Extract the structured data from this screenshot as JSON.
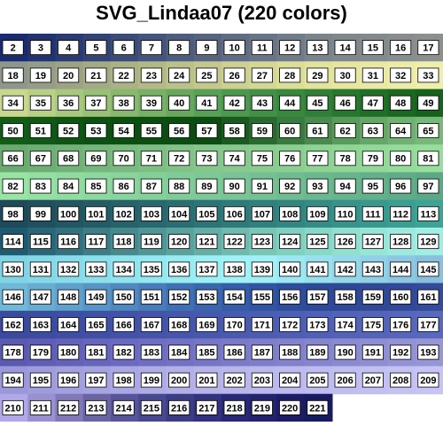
{
  "title": "SVG_Lindaa07 (220 colors)",
  "columns": 16,
  "cells": [
    {
      "n": 2,
      "c": "#1b2b6e"
    },
    {
      "n": 3,
      "c": "#22336f"
    },
    {
      "n": 4,
      "c": "#2a3b72"
    },
    {
      "n": 5,
      "c": "#334474"
    },
    {
      "n": 6,
      "c": "#3c4c77"
    },
    {
      "n": 7,
      "c": "#45547a"
    },
    {
      "n": 8,
      "c": "#4e5c7d"
    },
    {
      "n": 9,
      "c": "#576480"
    },
    {
      "n": 10,
      "c": "#606c83"
    },
    {
      "n": 11,
      "c": "#697486"
    },
    {
      "n": 12,
      "c": "#727c89"
    },
    {
      "n": 13,
      "c": "#7b848b"
    },
    {
      "n": 14,
      "c": "#80888c"
    },
    {
      "n": 15,
      "c": "#84898c"
    },
    {
      "n": 16,
      "c": "#888d8d"
    },
    {
      "n": 17,
      "c": "#8b908e"
    },
    {
      "n": 18,
      "c": "#8f968a"
    },
    {
      "n": 19,
      "c": "#959c88"
    },
    {
      "n": 20,
      "c": "#9ca385"
    },
    {
      "n": 21,
      "c": "#a3aa84"
    },
    {
      "n": 22,
      "c": "#abb285"
    },
    {
      "n": 23,
      "c": "#b3b986"
    },
    {
      "n": 24,
      "c": "#bcc189"
    },
    {
      "n": 25,
      "c": "#c4c88c"
    },
    {
      "n": 26,
      "c": "#ccd090"
    },
    {
      "n": 27,
      "c": "#d4d894"
    },
    {
      "n": 28,
      "c": "#dcde98"
    },
    {
      "n": 29,
      "c": "#e2e39c"
    },
    {
      "n": 30,
      "c": "#e6e6a0"
    },
    {
      "n": 31,
      "c": "#e9e9a5"
    },
    {
      "n": 32,
      "c": "#ececa8"
    },
    {
      "n": 33,
      "c": "#efefac"
    },
    {
      "n": 34,
      "c": "#c8d88e"
    },
    {
      "n": 35,
      "c": "#b8d086"
    },
    {
      "n": 36,
      "c": "#a8c87e"
    },
    {
      "n": 37,
      "c": "#98c076"
    },
    {
      "n": 38,
      "c": "#88b86e"
    },
    {
      "n": 39,
      "c": "#78b066"
    },
    {
      "n": 40,
      "c": "#68a85e"
    },
    {
      "n": 41,
      "c": "#58a056"
    },
    {
      "n": 42,
      "c": "#4c984e"
    },
    {
      "n": 43,
      "c": "#429046"
    },
    {
      "n": 44,
      "c": "#38883e"
    },
    {
      "n": 45,
      "c": "#307f36"
    },
    {
      "n": 46,
      "c": "#28772e"
    },
    {
      "n": 47,
      "c": "#206f27"
    },
    {
      "n": 48,
      "c": "#1a6821"
    },
    {
      "n": 49,
      "c": "#15621c"
    },
    {
      "n": 50,
      "c": "#125c18"
    },
    {
      "n": 51,
      "c": "#105816"
    },
    {
      "n": 52,
      "c": "#0e5414"
    },
    {
      "n": 53,
      "c": "#0d5013"
    },
    {
      "n": 54,
      "c": "#0c4e12"
    },
    {
      "n": 55,
      "c": "#0c4d12"
    },
    {
      "n": 56,
      "c": "#0c4c12"
    },
    {
      "n": 57,
      "c": "#0c4b12"
    },
    {
      "n": 58,
      "c": "#1a5a20"
    },
    {
      "n": 59,
      "c": "#2a6a30"
    },
    {
      "n": 60,
      "c": "#3a7a40"
    },
    {
      "n": 61,
      "c": "#4a8a4e"
    },
    {
      "n": 62,
      "c": "#5a9a5c"
    },
    {
      "n": 63,
      "c": "#66a668"
    },
    {
      "n": 64,
      "c": "#70b072"
    },
    {
      "n": 65,
      "c": "#78b87a"
    },
    {
      "n": 66,
      "c": "#6aaa70"
    },
    {
      "n": 67,
      "c": "#6eae74"
    },
    {
      "n": 68,
      "c": "#72b278"
    },
    {
      "n": 69,
      "c": "#76b67c"
    },
    {
      "n": 70,
      "c": "#7aba80"
    },
    {
      "n": 71,
      "c": "#7ebe84"
    },
    {
      "n": 72,
      "c": "#82c288"
    },
    {
      "n": 73,
      "c": "#86c68c"
    },
    {
      "n": 74,
      "c": "#88c88e"
    },
    {
      "n": 75,
      "c": "#8acc90"
    },
    {
      "n": 76,
      "c": "#8cce92"
    },
    {
      "n": 77,
      "c": "#8ed294"
    },
    {
      "n": 78,
      "c": "#90d496"
    },
    {
      "n": 79,
      "c": "#92d898"
    },
    {
      "n": 80,
      "c": "#94da9a"
    },
    {
      "n": 81,
      "c": "#96de9c"
    },
    {
      "n": 82,
      "c": "#98e4a4"
    },
    {
      "n": 83,
      "c": "#94e0a2"
    },
    {
      "n": 84,
      "c": "#90dca0"
    },
    {
      "n": 85,
      "c": "#8cd89e"
    },
    {
      "n": 86,
      "c": "#88d49c"
    },
    {
      "n": 87,
      "c": "#84d09a"
    },
    {
      "n": 88,
      "c": "#80cc98"
    },
    {
      "n": 89,
      "c": "#7cc896"
    },
    {
      "n": 90,
      "c": "#78c494"
    },
    {
      "n": 91,
      "c": "#74c092"
    },
    {
      "n": 92,
      "c": "#70bc90"
    },
    {
      "n": 93,
      "c": "#6cb88e"
    },
    {
      "n": 94,
      "c": "#68b48c"
    },
    {
      "n": 95,
      "c": "#64b08a"
    },
    {
      "n": 96,
      "c": "#60ac88"
    },
    {
      "n": 97,
      "c": "#5ca886"
    },
    {
      "n": 98,
      "c": "#1e4a5a"
    },
    {
      "n": 99,
      "c": "#20505e"
    },
    {
      "n": 100,
      "c": "#225662"
    },
    {
      "n": 101,
      "c": "#245c66"
    },
    {
      "n": 102,
      "c": "#26626a"
    },
    {
      "n": 103,
      "c": "#28686e"
    },
    {
      "n": 104,
      "c": "#2a6e72"
    },
    {
      "n": 105,
      "c": "#2c7476"
    },
    {
      "n": 106,
      "c": "#2e7a7a"
    },
    {
      "n": 107,
      "c": "#30807e"
    },
    {
      "n": 108,
      "c": "#328682"
    },
    {
      "n": 109,
      "c": "#348c86"
    },
    {
      "n": 110,
      "c": "#36928a"
    },
    {
      "n": 111,
      "c": "#38988e"
    },
    {
      "n": 112,
      "c": "#3a9e92"
    },
    {
      "n": 113,
      "c": "#3ca496"
    },
    {
      "n": 114,
      "c": "#1e5a70"
    },
    {
      "n": 115,
      "c": "#286678"
    },
    {
      "n": 116,
      "c": "#32727e"
    },
    {
      "n": 117,
      "c": "#3c7e86"
    },
    {
      "n": 118,
      "c": "#468a8e"
    },
    {
      "n": 119,
      "c": "#509696"
    },
    {
      "n": 120,
      "c": "#5aa29e"
    },
    {
      "n": 121,
      "c": "#64aea6"
    },
    {
      "n": 122,
      "c": "#6ebaae"
    },
    {
      "n": 123,
      "c": "#78c6b6"
    },
    {
      "n": 124,
      "c": "#80d0c0"
    },
    {
      "n": 125,
      "c": "#88d8c8"
    },
    {
      "n": 126,
      "c": "#90e0d0"
    },
    {
      "n": 127,
      "c": "#96e6d8"
    },
    {
      "n": 128,
      "c": "#9ceadf"
    },
    {
      "n": 129,
      "c": "#a0eee4"
    },
    {
      "n": 130,
      "c": "#80d4e4"
    },
    {
      "n": 131,
      "c": "#84d8e8"
    },
    {
      "n": 132,
      "c": "#88dcea"
    },
    {
      "n": 133,
      "c": "#8ce0ec"
    },
    {
      "n": 134,
      "c": "#90e4ee"
    },
    {
      "n": 135,
      "c": "#94e8f0"
    },
    {
      "n": 136,
      "c": "#98ecf2"
    },
    {
      "n": 137,
      "c": "#9cf0f4"
    },
    {
      "n": 138,
      "c": "#a0f2f6"
    },
    {
      "n": 139,
      "c": "#a0f0f6"
    },
    {
      "n": 140,
      "c": "#9ce8f2"
    },
    {
      "n": 141,
      "c": "#98e0ee"
    },
    {
      "n": 142,
      "c": "#94d8ea"
    },
    {
      "n": 143,
      "c": "#90d0e6"
    },
    {
      "n": 144,
      "c": "#8cc8e2"
    },
    {
      "n": 145,
      "c": "#88c0de"
    },
    {
      "n": 146,
      "c": "#70b8d8"
    },
    {
      "n": 147,
      "c": "#68acd2"
    },
    {
      "n": 148,
      "c": "#60a0cc"
    },
    {
      "n": 149,
      "c": "#5894c6"
    },
    {
      "n": 150,
      "c": "#5088c0"
    },
    {
      "n": 151,
      "c": "#487cba"
    },
    {
      "n": 152,
      "c": "#4070b4"
    },
    {
      "n": 153,
      "c": "#3a66ae"
    },
    {
      "n": 154,
      "c": "#345ca8"
    },
    {
      "n": 155,
      "c": "#3054a2"
    },
    {
      "n": 156,
      "c": "#2e4e9c"
    },
    {
      "n": 157,
      "c": "#2c4a98"
    },
    {
      "n": 158,
      "c": "#2e4896"
    },
    {
      "n": 159,
      "c": "#304896"
    },
    {
      "n": 160,
      "c": "#324898"
    },
    {
      "n": 161,
      "c": "#344a9a"
    },
    {
      "n": 162,
      "c": "#3a4a9c"
    },
    {
      "n": 163,
      "c": "#3c4ca0"
    },
    {
      "n": 164,
      "c": "#3e4ea2"
    },
    {
      "n": 165,
      "c": "#4050a4"
    },
    {
      "n": 166,
      "c": "#4252a6"
    },
    {
      "n": 167,
      "c": "#4454a8"
    },
    {
      "n": 168,
      "c": "#4656aa"
    },
    {
      "n": 169,
      "c": "#4858ac"
    },
    {
      "n": 170,
      "c": "#4a5aae"
    },
    {
      "n": 171,
      "c": "#4c5cb0"
    },
    {
      "n": 172,
      "c": "#4e5eb2"
    },
    {
      "n": 173,
      "c": "#5060b4"
    },
    {
      "n": 174,
      "c": "#5262b6"
    },
    {
      "n": 175,
      "c": "#5464b8"
    },
    {
      "n": 176,
      "c": "#5666ba"
    },
    {
      "n": 177,
      "c": "#5868bc"
    },
    {
      "n": 178,
      "c": "#5a5ab0"
    },
    {
      "n": 179,
      "c": "#5e5eb4"
    },
    {
      "n": 180,
      "c": "#6262b8"
    },
    {
      "n": 181,
      "c": "#6666bc"
    },
    {
      "n": 182,
      "c": "#6a6ac0"
    },
    {
      "n": 183,
      "c": "#6e6ec2"
    },
    {
      "n": 184,
      "c": "#7272c4"
    },
    {
      "n": 185,
      "c": "#7676c6"
    },
    {
      "n": 186,
      "c": "#7a7ac8"
    },
    {
      "n": 187,
      "c": "#7e7eca"
    },
    {
      "n": 188,
      "c": "#8282cc"
    },
    {
      "n": 189,
      "c": "#8686ce"
    },
    {
      "n": 190,
      "c": "#8a8ad0"
    },
    {
      "n": 191,
      "c": "#8e8ed2"
    },
    {
      "n": 192,
      "c": "#9292d4"
    },
    {
      "n": 193,
      "c": "#9696d6"
    },
    {
      "n": 194,
      "c": "#9a98da"
    },
    {
      "n": 195,
      "c": "#9e9cdc"
    },
    {
      "n": 196,
      "c": "#a2a0de"
    },
    {
      "n": 197,
      "c": "#a6a4e0"
    },
    {
      "n": 198,
      "c": "#aaa8e2"
    },
    {
      "n": 199,
      "c": "#aeace4"
    },
    {
      "n": 200,
      "c": "#b2b0e6"
    },
    {
      "n": 201,
      "c": "#b6b4e8"
    },
    {
      "n": 202,
      "c": "#b8b6ea"
    },
    {
      "n": 203,
      "c": "#bab8ec"
    },
    {
      "n": 204,
      "c": "#bcbaee"
    },
    {
      "n": 205,
      "c": "#bebcf0"
    },
    {
      "n": 206,
      "c": "#c0bef0"
    },
    {
      "n": 207,
      "c": "#c2c0f2"
    },
    {
      "n": 208,
      "c": "#c4c2f2"
    },
    {
      "n": 209,
      "c": "#c6c4f4"
    },
    {
      "n": 210,
      "c": "#b0a8e8"
    },
    {
      "n": 211,
      "c": "#9890d0"
    },
    {
      "n": 212,
      "c": "#8078b8"
    },
    {
      "n": 213,
      "c": "#6a64a4"
    },
    {
      "n": 214,
      "c": "#58549a"
    },
    {
      "n": 215,
      "c": "#484890"
    },
    {
      "n": 216,
      "c": "#3c3c86"
    },
    {
      "n": 217,
      "c": "#32327e"
    },
    {
      "n": 218,
      "c": "#282876"
    },
    {
      "n": 219,
      "c": "#22226e"
    },
    {
      "n": 220,
      "c": "#1c1c66"
    },
    {
      "n": 221,
      "c": "#181a60"
    }
  ]
}
